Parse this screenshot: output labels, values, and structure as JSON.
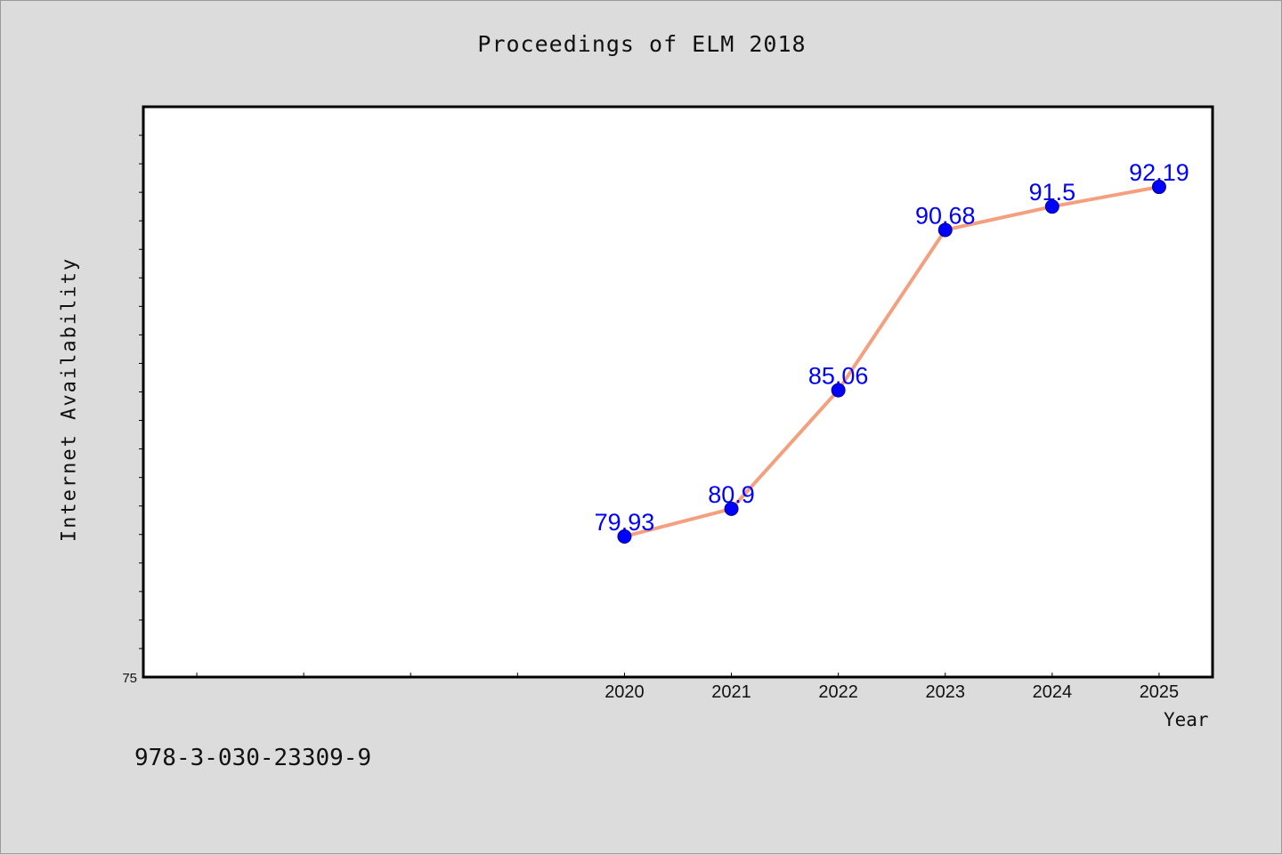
{
  "title": "Proceedings of ELM 2018",
  "footer_text": "978-3-030-23309-9",
  "colors": {
    "background": "#dcdcdc",
    "plot_background": "#ffffff",
    "line": "#f4a07e",
    "marker": "#0000ff",
    "data_label": "#0000ff"
  },
  "chart_data": {
    "type": "line",
    "title": "Proceedings of ELM 2018",
    "xlabel": "Year",
    "ylabel": "Internet Availability",
    "x": [
      2020,
      2021,
      2022,
      2023,
      2024,
      2025
    ],
    "xlim": [
      2015.5,
      2025.5
    ],
    "ylim": [
      75,
      95
    ],
    "y_tick_label": "75",
    "grid": false,
    "series": [
      {
        "values": [
          79.93,
          80.9,
          85.06,
          90.68,
          91.5,
          92.19
        ],
        "labels": [
          "79.93",
          "80.9",
          "85.06",
          "90.68",
          "91.5",
          "92.19"
        ]
      }
    ]
  }
}
